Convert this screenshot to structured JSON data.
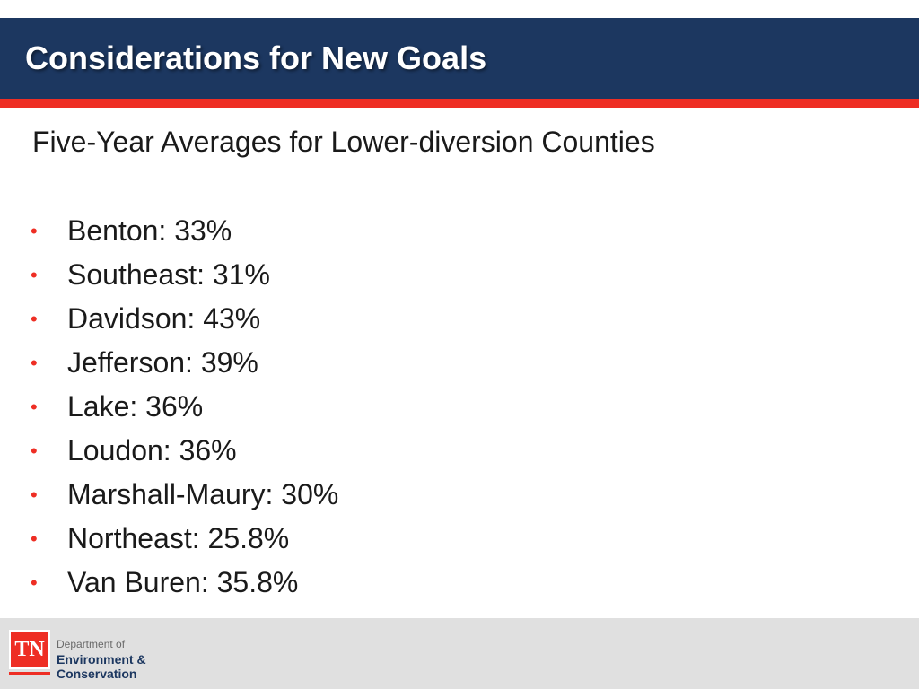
{
  "slide": {
    "title": "Considerations for New Goals",
    "subtitle": "Five-Year Averages for Lower-diversion Counties",
    "bullet_glyph": "•",
    "bullets": [
      "Benton: 33%",
      "Southeast: 31%",
      "Davidson: 43%",
      "Jefferson: 39%",
      "Lake: 36%",
      "Loudon: 36%",
      "Marshall-Maury: 30%",
      "Northeast: 25.8%",
      "Van Buren: 35.8%"
    ]
  },
  "footer": {
    "logo_mark": "TN",
    "logo_line1": "Department of",
    "logo_line2": "Environment &",
    "logo_line3": "Conservation"
  },
  "colors": {
    "title_bar": "#1c3760",
    "accent_red": "#ee2e24",
    "footer_bg": "#e0e0e0"
  }
}
